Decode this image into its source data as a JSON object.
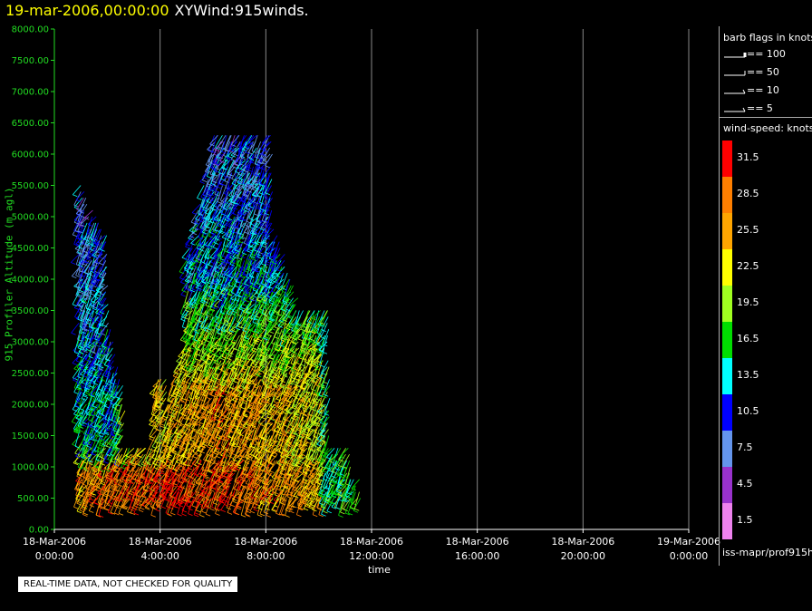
{
  "title": {
    "date": "19-mar-2006,00:00:00",
    "name": "XYWind:915winds."
  },
  "qc_notice": "REAL-TIME DATA, NOT CHECKED FOR QUALITY",
  "footer_path": "iss-mapr/prof915h",
  "colors": {
    "axis": "#22dd22",
    "grid": "#888888",
    "background": "#000000"
  },
  "chart_data": {
    "type": "scatter",
    "mark": "wind-barb",
    "ylabel": "915 Profiler Altitude (m agl)",
    "xlabel": "time",
    "ylim": [
      0,
      8000
    ],
    "y_ticks": [
      "0.00",
      "500.00",
      "1000.00",
      "1500.00",
      "2000.00",
      "2500.00",
      "3000.00",
      "3500.00",
      "4000.00",
      "4500.00",
      "5000.00",
      "5500.00",
      "6000.00",
      "6500.00",
      "7000.00",
      "7500.00",
      "8000.00"
    ],
    "xlim_hours": [
      0,
      24
    ],
    "x_ticks": [
      {
        "hour": 0,
        "date": "18-Mar-2006",
        "time": "0:00:00"
      },
      {
        "hour": 4,
        "date": "18-Mar-2006",
        "time": "4:00:00"
      },
      {
        "hour": 8,
        "date": "18-Mar-2006",
        "time": "8:00:00"
      },
      {
        "hour": 12,
        "date": "18-Mar-2006",
        "time": "12:00:00"
      },
      {
        "hour": 16,
        "date": "18-Mar-2006",
        "time": "16:00:00"
      },
      {
        "hour": 20,
        "date": "18-Mar-2006",
        "time": "20:00:00"
      },
      {
        "hour": 24,
        "date": "19-Mar-2006",
        "time": "0:00:00"
      }
    ],
    "vertical_grid": true,
    "data_hours_range": [
      1.0,
      11.6
    ],
    "max_altitude_m": 6300
  },
  "legend": {
    "barb_title": "barb flags in knots",
    "barbs": [
      {
        "value": "== 100"
      },
      {
        "value": "== 50"
      },
      {
        "value": "== 10"
      },
      {
        "value": "== 5"
      }
    ],
    "colorbar_title": "wind-speed: knots",
    "colorbar": [
      {
        "label": "31.5",
        "color": "#ff0000"
      },
      {
        "label": "28.5",
        "color": "#ff7f00"
      },
      {
        "label": "25.5",
        "color": "#ffa500"
      },
      {
        "label": "22.5",
        "color": "#ffff00"
      },
      {
        "label": "19.5",
        "color": "#a0ff20"
      },
      {
        "label": "16.5",
        "color": "#00dd00"
      },
      {
        "label": "13.5",
        "color": "#00ffff"
      },
      {
        "label": "10.5",
        "color": "#0000ff"
      },
      {
        "label": "7.5",
        "color": "#6495ed"
      },
      {
        "label": "4.5",
        "color": "#9932cc"
      },
      {
        "label": "1.5",
        "color": "#ee82ee"
      }
    ]
  }
}
